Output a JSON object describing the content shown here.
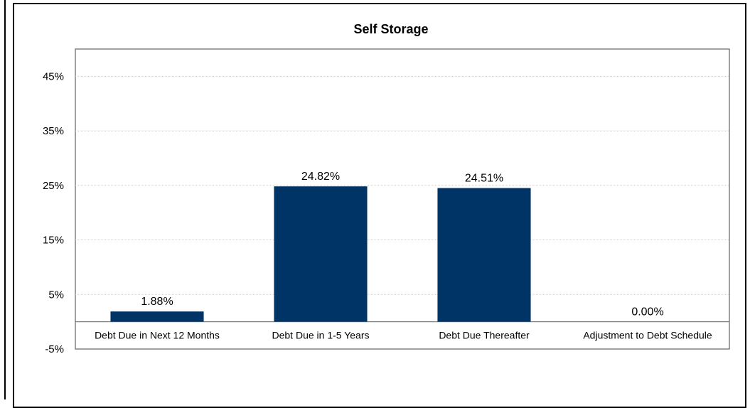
{
  "chart_data": {
    "type": "bar",
    "title": "Self Storage",
    "xlabel": "",
    "ylabel": "",
    "categories": [
      "Debt Due in Next 12 Months",
      "Debt Due in 1-5 Years",
      "Debt Due Thereafter",
      "Adjustment to Debt Schedule"
    ],
    "values": [
      1.88,
      24.82,
      24.51,
      0.0
    ],
    "data_labels": [
      "1.88%",
      "24.82%",
      "24.51%",
      "0.00%"
    ],
    "ylim": [
      -5,
      50
    ],
    "yticks": [
      -5,
      5,
      15,
      25,
      35,
      45
    ],
    "ytick_labels": [
      "-5%",
      "5%",
      "15%",
      "25%",
      "35%",
      "45%"
    ],
    "grid": true,
    "legend": "none",
    "bar_color": "#003366"
  }
}
